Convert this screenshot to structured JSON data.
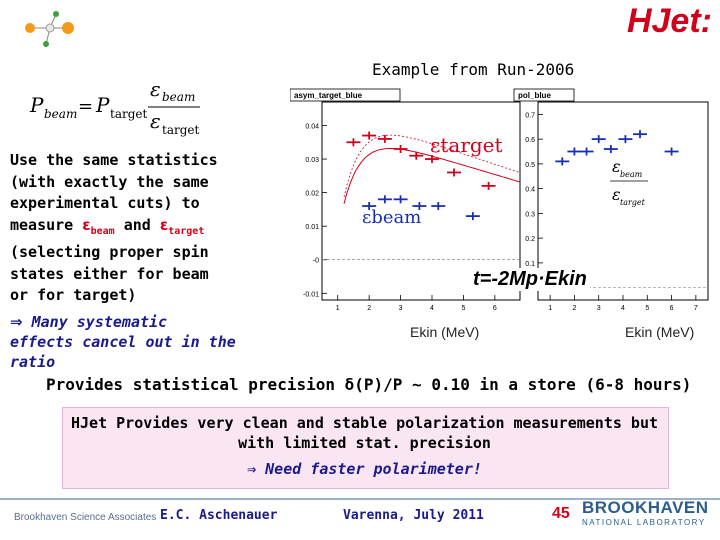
{
  "header": {
    "title": "HJet:",
    "subtitle": "Example from Run-2006"
  },
  "formula": {
    "lhs": "P",
    "lhs_sub": "beam",
    "eq": "=",
    "rhs": "P",
    "rhs_sub": "target",
    "num_eps": "ε",
    "num_sub": "beam",
    "den_eps": "ε",
    "den_sub": "target"
  },
  "left_text": {
    "line1": "Use the same statistics",
    "line2": "(with exactly the same",
    "line3": "experimental cuts) to",
    "line4_a": "measure ",
    "line4_eps1": "ε",
    "line4_sub1": "beam",
    "line4_b": " and ",
    "line4_eps2": "ε",
    "line4_sub2": "target",
    "line5": "(selecting proper spin",
    "line6": "states either for beam",
    "line7": "or for target)"
  },
  "systematic": {
    "arrow": "⇒",
    "line1": " Many systematic",
    "line2": "effects cancel out in the",
    "line3": "ratio"
  },
  "precision": "Provides statistical precision δ(P)/P ~ 0.10 in a store (6-8 hours)",
  "box": {
    "line1": "HJet Provides very clean and stable polarization measurements but",
    "line2": "with limited stat. precision",
    "need": "⇒ Need faster polarimeter!"
  },
  "plots": {
    "left_title": "asym_target_blue",
    "right_title": "pol_blue",
    "eps_target": "εtarget",
    "eps_beam": "εbeam",
    "t_label": "t=-2Mp·Ekin",
    "ekin_label_1": "Ekin (MeV)",
    "ekin_label_2": "Ekin (MeV)",
    "colors": {
      "red": "#d0021b",
      "blue": "#1a2fb0"
    }
  },
  "chart_data": [
    {
      "type": "scatter",
      "title": "asym_target_blue",
      "x_ticks": [
        "1",
        "2",
        "3",
        "4",
        "5",
        "6"
      ],
      "y_ticks": [
        "-0.01",
        "-0",
        "0.01",
        "0.02",
        "0.03",
        "0.04"
      ],
      "xlim": [
        0.5,
        6.8
      ],
      "ylim": [
        -0.012,
        0.047
      ],
      "series": [
        {
          "name": "εtarget",
          "color": "#d0021b",
          "x": [
            1.5,
            2.0,
            2.5,
            3.0,
            3.5,
            4.0,
            4.7,
            5.8
          ],
          "y": [
            0.035,
            0.037,
            0.036,
            0.033,
            0.031,
            0.03,
            0.026,
            0.022
          ]
        },
        {
          "name": "εbeam",
          "color": "#1a2fb0",
          "x": [
            2.0,
            2.5,
            3.0,
            3.6,
            4.2,
            5.3
          ],
          "y": [
            0.016,
            0.018,
            0.018,
            0.016,
            0.016,
            0.013
          ]
        }
      ]
    },
    {
      "type": "scatter",
      "title": "pol_blue",
      "x_ticks": [
        "1",
        "2",
        "3",
        "4",
        "5",
        "6",
        "7"
      ],
      "y_ticks": [
        "-0",
        "0.1",
        "0.2",
        "0.3",
        "0.4",
        "0.5",
        "0.6",
        "0.7"
      ],
      "xlim": [
        0.5,
        7.5
      ],
      "ylim": [
        -0.05,
        0.75
      ],
      "series": [
        {
          "name": "εbeam/εtarget",
          "color": "#1a2fb0",
          "x": [
            1.5,
            2.0,
            2.5,
            3.0,
            3.5,
            4.1,
            4.7,
            6.0
          ],
          "y": [
            0.51,
            0.55,
            0.55,
            0.6,
            0.56,
            0.6,
            0.62,
            0.55
          ]
        }
      ]
    }
  ],
  "footer": {
    "org": "Brookhaven Science Associates",
    "author": "E.C. Aschenauer",
    "place": "Varenna, July 2011",
    "page": "45",
    "logo_line1": "BROOKHAVEN",
    "logo_line2": "NATIONAL LABORATORY"
  }
}
